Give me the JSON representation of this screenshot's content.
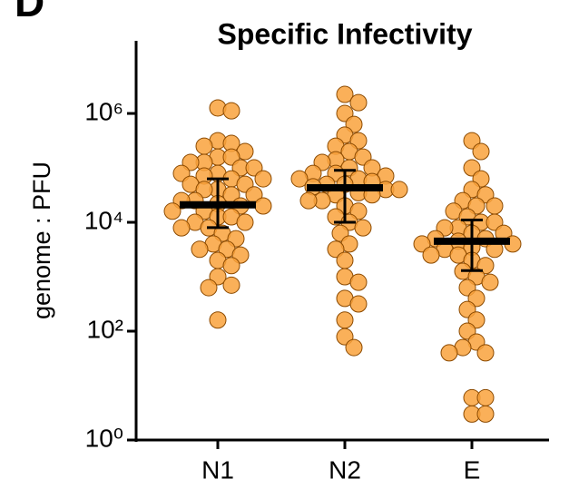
{
  "panel_label": "D",
  "chart_data": {
    "type": "beeswarm",
    "title": "Specific Infectivity",
    "y_label": "genome : PFU",
    "log_scale": true,
    "color": "#f9a23c",
    "edge_color": "#8c4a00",
    "categories": [
      "N1",
      "N2",
      "E"
    ],
    "ylim": [
      1,
      20000000
    ],
    "yticks": [
      {
        "value": 1,
        "label": "10⁰"
      },
      {
        "value": 100,
        "label": "10²"
      },
      {
        "value": 10000,
        "label": "10⁴"
      },
      {
        "value": 1000000,
        "label": "10⁶"
      }
    ],
    "groups": [
      {
        "median": 21000,
        "error": [
          8000,
          63000
        ],
        "values": [
          1260000,
          1120000,
          316000,
          282000,
          251000,
          200000,
          158000,
          158000,
          126000,
          126000,
          100000,
          100000,
          79000,
          79000,
          71000,
          63000,
          63000,
          50000,
          50000,
          40000,
          40000,
          32000,
          32000,
          25000,
          25000,
          22000,
          20000,
          20000,
          16000,
          16000,
          12600,
          12600,
          10000,
          10000,
          7900,
          7900,
          6300,
          5000,
          4000,
          3200,
          3200,
          2500,
          2000,
          1600,
          1000,
          700,
          630,
          160
        ]
      },
      {
        "median": 43000,
        "error": [
          10000,
          90000
        ],
        "values": [
          2240000,
          1580000,
          1000000,
          630000,
          400000,
          316000,
          251000,
          200000,
          158000,
          141000,
          126000,
          100000,
          100000,
          79000,
          79000,
          71000,
          63000,
          63000,
          56000,
          50000,
          50000,
          45000,
          40000,
          40000,
          35000,
          32000,
          32000,
          25000,
          25000,
          20000,
          16000,
          12600,
          10000,
          7900,
          6300,
          4000,
          3200,
          2000,
          1000,
          790,
          400,
          316,
          160,
          79,
          50
        ]
      },
      {
        "median": 4500,
        "error": [
          1300,
          11000
        ],
        "values": [
          316000,
          200000,
          100000,
          63000,
          40000,
          32000,
          25000,
          20000,
          20000,
          16000,
          12600,
          10000,
          10000,
          7900,
          7900,
          6300,
          6300,
          5000,
          5000,
          4500,
          4000,
          4000,
          3500,
          3200,
          3200,
          2500,
          2500,
          2000,
          1600,
          1260,
          1000,
          790,
          630,
          400,
          250,
          160,
          100,
          63,
          50,
          40,
          40,
          6,
          6,
          3,
          3
        ]
      }
    ]
  }
}
